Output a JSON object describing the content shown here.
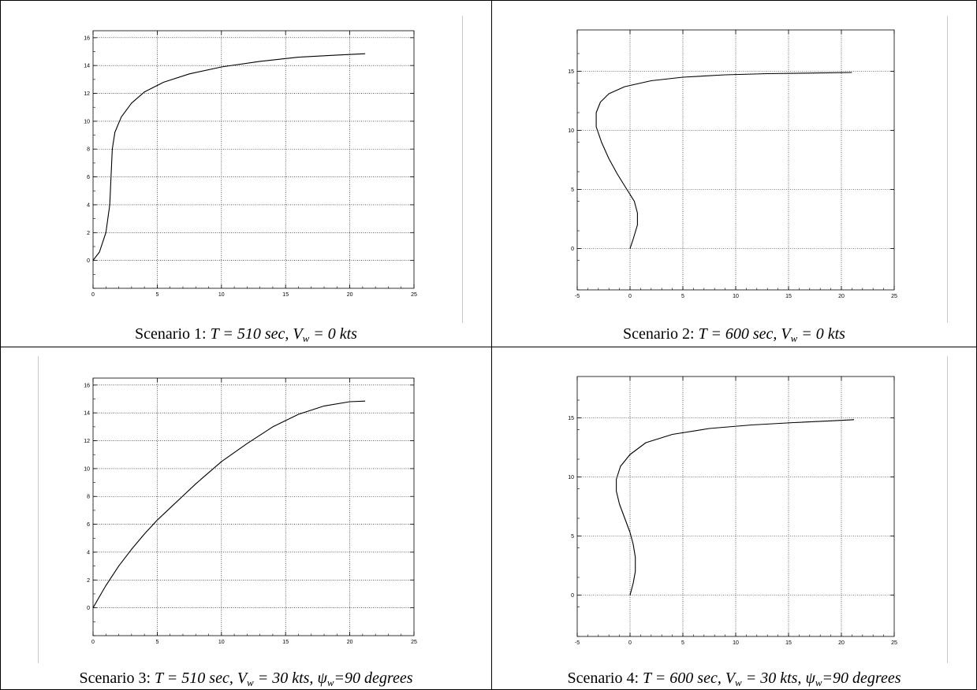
{
  "page": {
    "background": "#ffffff",
    "border_color": "#000000",
    "grid_color": "#000000",
    "curve_color": "#000000"
  },
  "chart_data": [
    {
      "type": "line",
      "caption": {
        "prefix": "Scenario 1: ",
        "T": "T = 510 sec, V",
        "sub": "w",
        "rest": " = 0 kts",
        "tail": "",
        "tail_sub": "",
        "tail_end": ""
      },
      "xlim": [
        0,
        25
      ],
      "ylim": [
        -2,
        16.5
      ],
      "xticks": [
        0,
        5,
        10,
        15,
        20,
        25
      ],
      "yticks": [
        0,
        2,
        4,
        6,
        8,
        10,
        12,
        14,
        16
      ],
      "xtick_labels": [
        "0",
        "5",
        "10",
        "15",
        "20",
        "25"
      ],
      "ytick_labels": [
        "0",
        "2",
        "4",
        "6",
        "8",
        "10",
        "12",
        "14",
        "16"
      ],
      "grid": true,
      "series": [
        {
          "x": [
            0,
            0.5,
            1.0,
            1.3,
            1.4,
            1.5,
            1.7,
            2.2,
            3.0,
            4.0,
            5.5,
            7.5,
            10,
            13,
            16,
            19,
            21.2
          ],
          "y": [
            0,
            0.6,
            2.0,
            4.0,
            6.0,
            8.0,
            9.2,
            10.3,
            11.3,
            12.1,
            12.8,
            13.4,
            13.9,
            14.3,
            14.6,
            14.75,
            14.85
          ]
        }
      ]
    },
    {
      "type": "line",
      "caption": {
        "prefix": "Scenario 2: ",
        "T": "T = 600 sec, V",
        "sub": "w",
        "rest": " = 0 kts",
        "tail": "",
        "tail_sub": "",
        "tail_end": ""
      },
      "xlim": [
        -5,
        25
      ],
      "ylim": [
        -3.5,
        18.5
      ],
      "xticks": [
        -5,
        0,
        5,
        10,
        15,
        20,
        25
      ],
      "yticks": [
        0,
        5,
        10,
        15
      ],
      "xtick_labels": [
        "-5",
        "0",
        "5",
        "10",
        "15",
        "20",
        "25"
      ],
      "ytick_labels": [
        "0",
        "5",
        "10",
        "15"
      ],
      "grid": true,
      "series": [
        {
          "x": [
            0,
            0.3,
            0.7,
            0.7,
            0.4,
            -0.3,
            -1.2,
            -2.0,
            -2.7,
            -3.2,
            -3.2,
            -2.8,
            -2.0,
            -0.5,
            2.0,
            5.0,
            9.0,
            13.0,
            17.0,
            21.0
          ],
          "y": [
            0,
            0.8,
            2.0,
            3.0,
            4.0,
            5.0,
            6.3,
            7.6,
            9.0,
            10.3,
            11.5,
            12.4,
            13.1,
            13.7,
            14.2,
            14.5,
            14.7,
            14.8,
            14.85,
            14.9
          ]
        }
      ]
    },
    {
      "type": "line",
      "caption": {
        "prefix": "Scenario 3: ",
        "T": "T = 510 sec, V",
        "sub": "w",
        "rest": " = 30 kts, ",
        "tail": "ψ",
        "tail_sub": "w",
        "tail_end": "=90 degrees"
      },
      "xlim": [
        0,
        25
      ],
      "ylim": [
        -2,
        16.5
      ],
      "xticks": [
        0,
        5,
        10,
        15,
        20,
        25
      ],
      "yticks": [
        0,
        2,
        4,
        6,
        8,
        10,
        12,
        14,
        16
      ],
      "xtick_labels": [
        "0",
        "5",
        "10",
        "15",
        "20",
        "25"
      ],
      "ytick_labels": [
        "0",
        "2",
        "4",
        "6",
        "8",
        "10",
        "12",
        "14",
        "16"
      ],
      "grid": true,
      "series": [
        {
          "x": [
            0,
            0.5,
            1.0,
            2.0,
            3.0,
            4.0,
            5.0,
            6.5,
            8.0,
            10,
            12,
            14,
            16,
            18,
            20,
            21.2
          ],
          "y": [
            0,
            0.8,
            1.6,
            3.0,
            4.2,
            5.3,
            6.3,
            7.6,
            8.9,
            10.5,
            11.8,
            13.0,
            13.9,
            14.5,
            14.8,
            14.85
          ]
        }
      ]
    },
    {
      "type": "line",
      "caption": {
        "prefix": "Scenario 4: ",
        "T": "T = 600 sec, V",
        "sub": "w",
        "rest": " = 30 kts, ",
        "tail": "ψ",
        "tail_sub": "w",
        "tail_end": "=90 degrees"
      },
      "xlim": [
        -5,
        25
      ],
      "ylim": [
        -3.5,
        18.5
      ],
      "xticks": [
        -5,
        0,
        5,
        10,
        15,
        20,
        25
      ],
      "yticks": [
        0,
        5,
        10,
        15
      ],
      "xtick_labels": [
        "-5",
        "0",
        "5",
        "10",
        "15",
        "20",
        "25"
      ],
      "ytick_labels": [
        "0",
        "5",
        "10",
        "15"
      ],
      "grid": true,
      "series": [
        {
          "x": [
            0,
            0.3,
            0.5,
            0.5,
            0.3,
            0,
            -0.5,
            -1.0,
            -1.3,
            -1.3,
            -0.9,
            0,
            1.5,
            4.0,
            7.5,
            11.5,
            15.5,
            19.0,
            21.2
          ],
          "y": [
            0,
            1.0,
            2.0,
            3.2,
            4.3,
            5.3,
            6.5,
            7.7,
            8.8,
            9.8,
            10.9,
            11.9,
            12.9,
            13.6,
            14.1,
            14.4,
            14.6,
            14.75,
            14.85
          ]
        }
      ]
    }
  ]
}
